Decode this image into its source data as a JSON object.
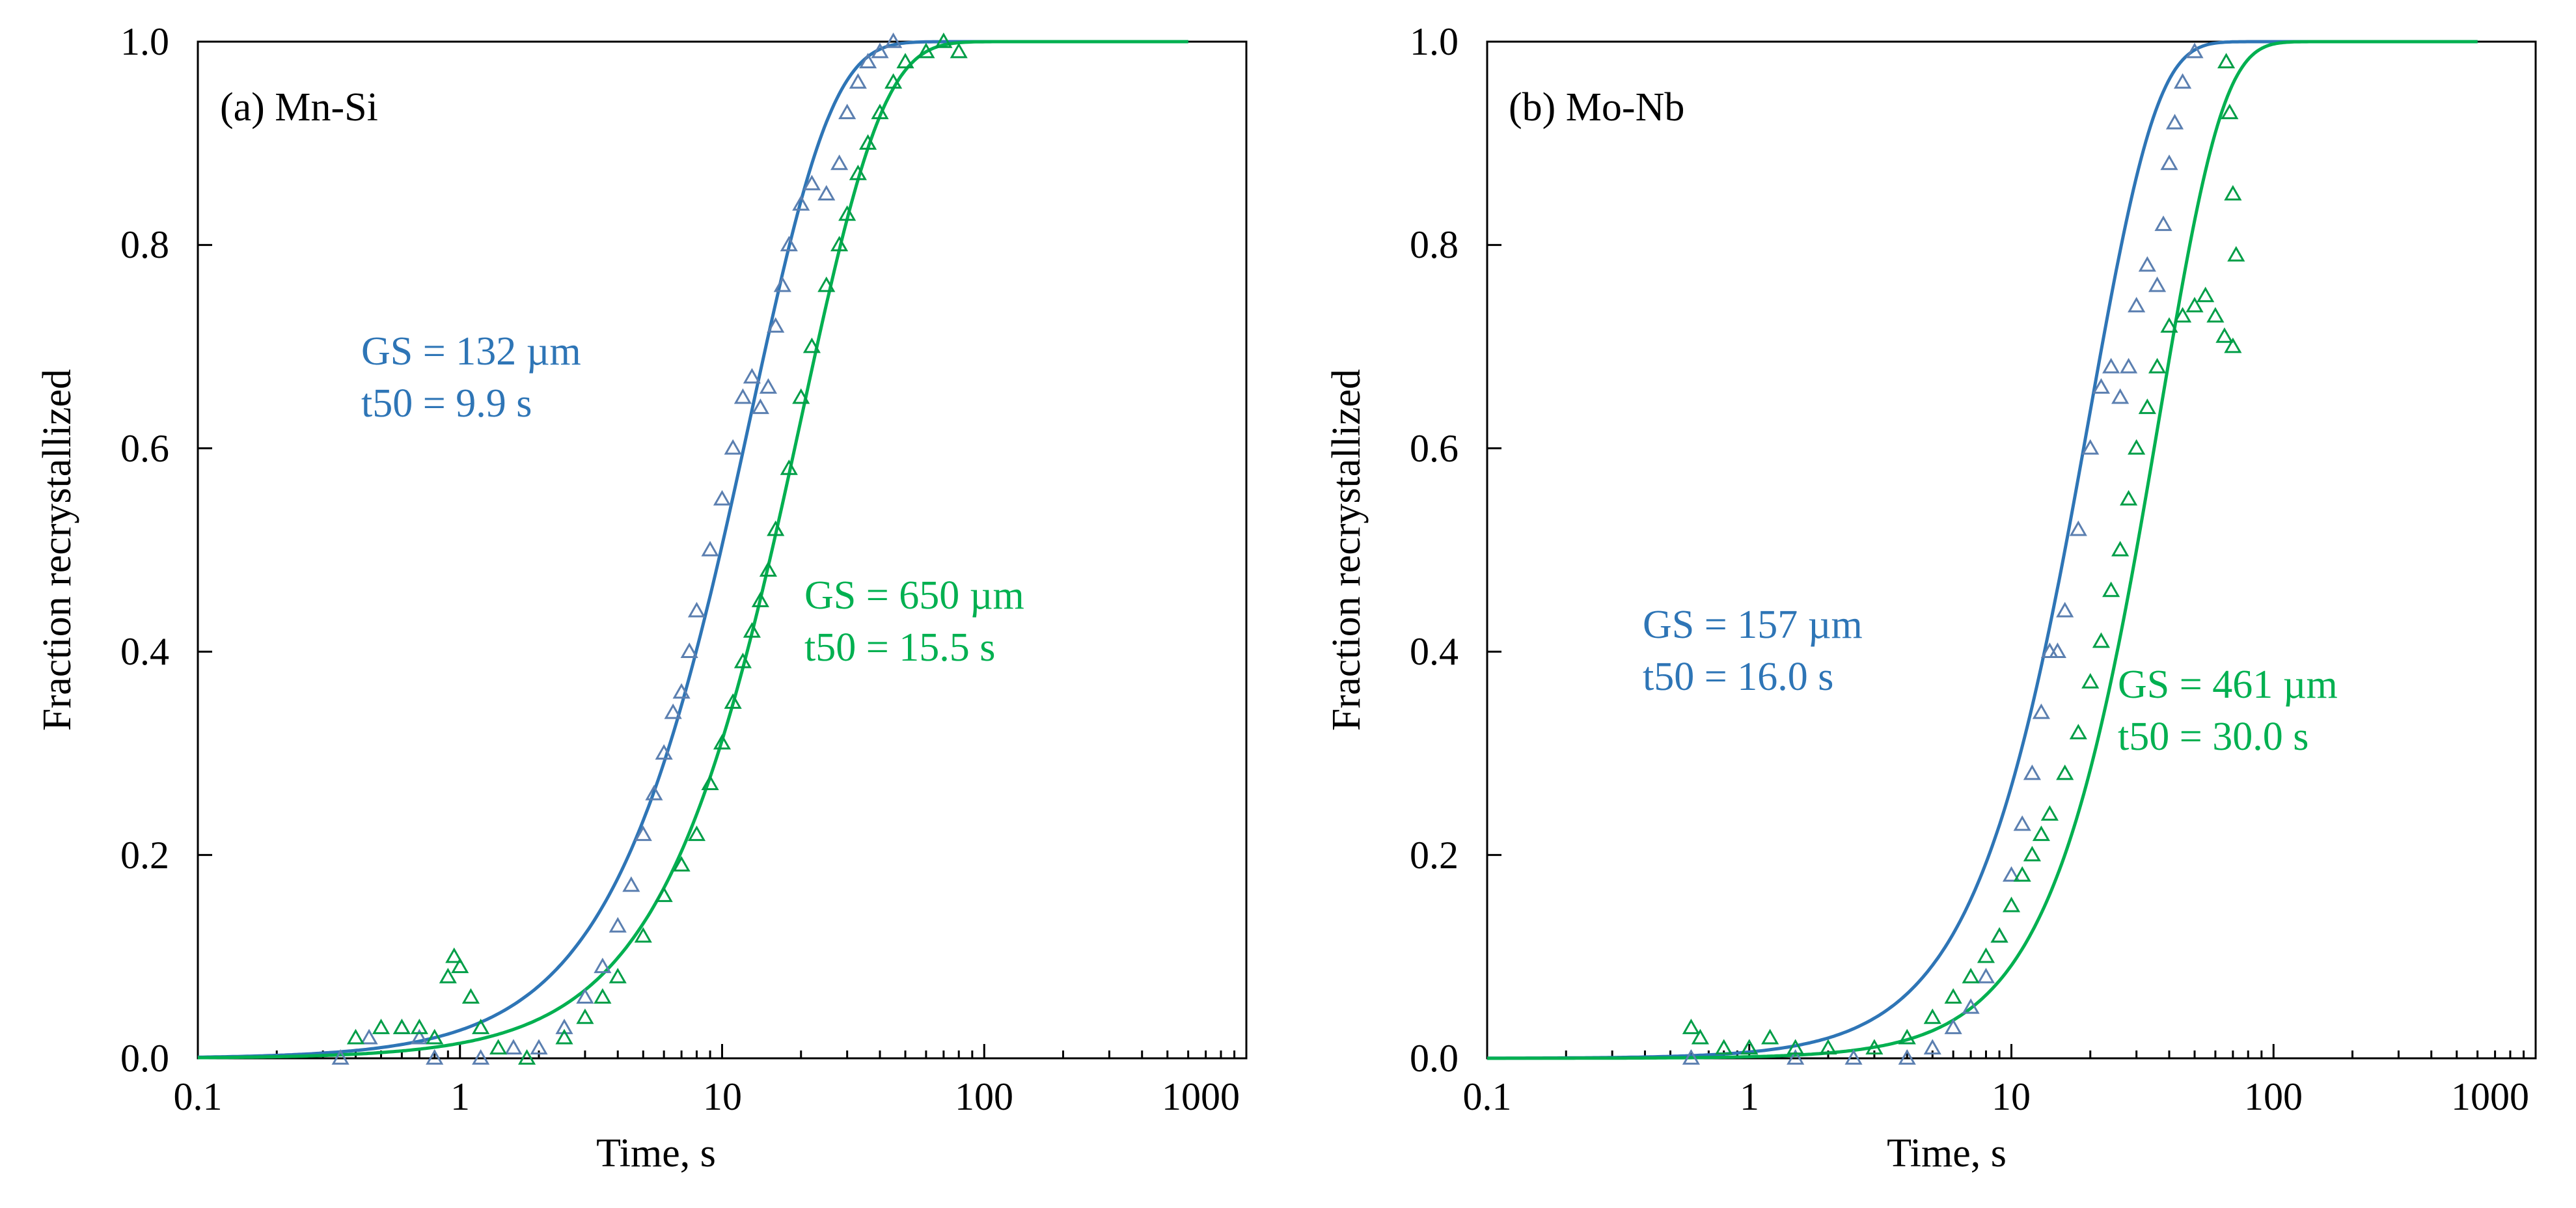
{
  "colors": {
    "blue": "#2E75B6",
    "blue_marker": "#5B7FB0",
    "green": "#00B050",
    "green_marker": "#009E47",
    "axis": "#000000"
  },
  "chart_data": [
    {
      "type": "scatter",
      "panel_label": "(a) Mn-Si",
      "xlabel": "Time, s",
      "ylabel": "Fraction recrystallized",
      "x_scale": "log",
      "xlim": [
        0.1,
        1000
      ],
      "ylim": [
        0,
        1
      ],
      "x_ticks": [
        "0.1",
        "1",
        "10",
        "100",
        "1000"
      ],
      "y_ticks": [
        "0.0",
        "0.2",
        "0.4",
        "0.6",
        "0.8",
        "1.0"
      ],
      "series": [
        {
          "color": "blue",
          "t50": 9.9,
          "n": 1.4,
          "end_time": 600,
          "annotation": [
            "GS = 132 µm",
            "t50 = 9.9 s"
          ],
          "measured": [
            [
              0.35,
              0.0
            ],
            [
              0.45,
              0.02
            ],
            [
              0.6,
              0.03
            ],
            [
              0.7,
              0.02
            ],
            [
              0.8,
              0.0
            ],
            [
              1.2,
              0.0
            ],
            [
              1.6,
              0.01
            ],
            [
              2.0,
              0.01
            ],
            [
              2.5,
              0.03
            ],
            [
              3.0,
              0.06
            ],
            [
              3.5,
              0.09
            ],
            [
              4.0,
              0.13
            ],
            [
              4.5,
              0.17
            ],
            [
              5.0,
              0.22
            ],
            [
              5.5,
              0.26
            ],
            [
              6.0,
              0.3
            ],
            [
              6.5,
              0.34
            ],
            [
              7.0,
              0.36
            ],
            [
              7.5,
              0.4
            ],
            [
              8.0,
              0.44
            ],
            [
              9.0,
              0.5
            ],
            [
              10.0,
              0.55
            ],
            [
              11.0,
              0.6
            ],
            [
              12.0,
              0.65
            ],
            [
              13.0,
              0.67
            ],
            [
              14.0,
              0.64
            ],
            [
              15.0,
              0.66
            ],
            [
              16.0,
              0.72
            ],
            [
              17.0,
              0.76
            ],
            [
              18.0,
              0.8
            ],
            [
              20.0,
              0.84
            ],
            [
              22.0,
              0.86
            ],
            [
              25.0,
              0.85
            ],
            [
              28.0,
              0.88
            ],
            [
              30.0,
              0.93
            ],
            [
              33.0,
              0.96
            ],
            [
              36.0,
              0.98
            ],
            [
              40.0,
              0.99
            ],
            [
              45.0,
              1.0
            ]
          ]
        },
        {
          "color": "green",
          "t50": 15.5,
          "n": 1.4,
          "end_time": 600,
          "annotation": [
            "GS = 650 µm",
            "t50 = 15.5 s"
          ],
          "measured": [
            [
              0.4,
              0.02
            ],
            [
              0.5,
              0.03
            ],
            [
              0.6,
              0.03
            ],
            [
              0.7,
              0.03
            ],
            [
              0.8,
              0.02
            ],
            [
              0.9,
              0.08
            ],
            [
              0.95,
              0.1
            ],
            [
              1.0,
              0.09
            ],
            [
              1.1,
              0.06
            ],
            [
              1.2,
              0.03
            ],
            [
              1.4,
              0.01
            ],
            [
              1.8,
              0.0
            ],
            [
              2.5,
              0.02
            ],
            [
              3.0,
              0.04
            ],
            [
              3.5,
              0.06
            ],
            [
              4.0,
              0.08
            ],
            [
              5.0,
              0.12
            ],
            [
              6.0,
              0.16
            ],
            [
              7.0,
              0.19
            ],
            [
              8.0,
              0.22
            ],
            [
              9.0,
              0.27
            ],
            [
              10.0,
              0.31
            ],
            [
              11.0,
              0.35
            ],
            [
              12.0,
              0.39
            ],
            [
              13.0,
              0.42
            ],
            [
              14.0,
              0.45
            ],
            [
              15.0,
              0.48
            ],
            [
              16.0,
              0.52
            ],
            [
              18.0,
              0.58
            ],
            [
              20.0,
              0.65
            ],
            [
              22.0,
              0.7
            ],
            [
              25.0,
              0.76
            ],
            [
              28.0,
              0.8
            ],
            [
              30.0,
              0.83
            ],
            [
              33.0,
              0.87
            ],
            [
              36.0,
              0.9
            ],
            [
              40.0,
              0.93
            ],
            [
              45.0,
              0.96
            ],
            [
              50.0,
              0.98
            ],
            [
              60.0,
              0.99
            ],
            [
              70.0,
              1.0
            ],
            [
              80.0,
              0.99
            ]
          ]
        }
      ]
    },
    {
      "type": "scatter",
      "panel_label": "(b) Mo-Nb",
      "xlabel": "Time, s",
      "ylabel": "Fraction recrystallized",
      "x_scale": "log",
      "xlim": [
        0.1,
        1000
      ],
      "ylim": [
        0,
        1
      ],
      "x_ticks": [
        "0.1",
        "1",
        "10",
        "100",
        "1000"
      ],
      "y_ticks": [
        "0.0",
        "0.2",
        "0.4",
        "0.6",
        "0.8",
        "1.0"
      ],
      "series": [
        {
          "color": "blue",
          "t50": 16.0,
          "n": 1.7,
          "end_time": 600,
          "annotation": [
            "GS = 157 µm",
            "t50 = 16.0 s"
          ],
          "measured": [
            [
              0.6,
              0.0
            ],
            [
              1.0,
              0.01
            ],
            [
              1.5,
              0.0
            ],
            [
              2.5,
              0.0
            ],
            [
              4.0,
              0.0
            ],
            [
              5.0,
              0.01
            ],
            [
              6.0,
              0.03
            ],
            [
              7.0,
              0.05
            ],
            [
              8.0,
              0.08
            ],
            [
              9.0,
              0.12
            ],
            [
              10.0,
              0.18
            ],
            [
              11.0,
              0.23
            ],
            [
              12.0,
              0.28
            ],
            [
              13.0,
              0.34
            ],
            [
              14.0,
              0.4
            ],
            [
              15.0,
              0.4
            ],
            [
              16.0,
              0.44
            ],
            [
              18.0,
              0.52
            ],
            [
              20.0,
              0.6
            ],
            [
              22.0,
              0.66
            ],
            [
              24.0,
              0.68
            ],
            [
              26.0,
              0.65
            ],
            [
              28.0,
              0.68
            ],
            [
              30.0,
              0.74
            ],
            [
              33.0,
              0.78
            ],
            [
              36.0,
              0.76
            ],
            [
              38.0,
              0.82
            ],
            [
              40.0,
              0.88
            ],
            [
              42.0,
              0.92
            ],
            [
              45.0,
              0.96
            ],
            [
              50.0,
              0.99
            ]
          ]
        },
        {
          "color": "green",
          "t50": 30.0,
          "n": 1.8,
          "end_time": 600,
          "annotation": [
            "GS = 461 µm",
            "t50 = 30.0 s"
          ],
          "measured": [
            [
              0.6,
              0.03
            ],
            [
              0.65,
              0.02
            ],
            [
              0.8,
              0.01
            ],
            [
              1.0,
              0.01
            ],
            [
              1.2,
              0.02
            ],
            [
              1.5,
              0.01
            ],
            [
              2.0,
              0.01
            ],
            [
              3.0,
              0.01
            ],
            [
              4.0,
              0.02
            ],
            [
              5.0,
              0.04
            ],
            [
              6.0,
              0.06
            ],
            [
              7.0,
              0.08
            ],
            [
              8.0,
              0.1
            ],
            [
              9.0,
              0.12
            ],
            [
              10.0,
              0.15
            ],
            [
              11.0,
              0.18
            ],
            [
              12.0,
              0.2
            ],
            [
              13.0,
              0.22
            ],
            [
              14.0,
              0.24
            ],
            [
              16.0,
              0.28
            ],
            [
              18.0,
              0.32
            ],
            [
              20.0,
              0.37
            ],
            [
              22.0,
              0.41
            ],
            [
              24.0,
              0.46
            ],
            [
              26.0,
              0.5
            ],
            [
              28.0,
              0.55
            ],
            [
              30.0,
              0.6
            ],
            [
              33.0,
              0.64
            ],
            [
              36.0,
              0.68
            ],
            [
              40.0,
              0.72
            ],
            [
              45.0,
              0.73
            ],
            [
              50.0,
              0.74
            ],
            [
              55.0,
              0.75
            ],
            [
              60.0,
              0.73
            ],
            [
              65.0,
              0.71
            ],
            [
              70.0,
              0.7
            ],
            [
              72.0,
              0.79
            ],
            [
              70.0,
              0.85
            ],
            [
              68.0,
              0.93
            ],
            [
              66.0,
              0.98
            ]
          ]
        }
      ]
    }
  ]
}
